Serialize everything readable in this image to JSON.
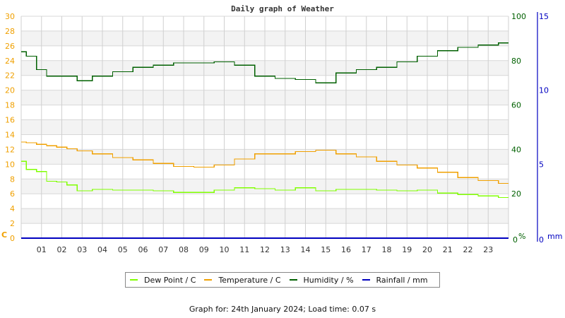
{
  "chart_data": {
    "type": "line",
    "title": "Daily graph of Weather",
    "xlabel": "",
    "x_ticks": [
      "01",
      "02",
      "03",
      "04",
      "05",
      "06",
      "07",
      "08",
      "09",
      "10",
      "11",
      "12",
      "13",
      "14",
      "15",
      "16",
      "17",
      "18",
      "19",
      "20",
      "21",
      "22",
      "23"
    ],
    "x": [
      0,
      0.5,
      1,
      1.5,
      2,
      2.5,
      3,
      4,
      5,
      6,
      7,
      8,
      9,
      10,
      11,
      12,
      13,
      14,
      15,
      16,
      17,
      18,
      19,
      20,
      21,
      22,
      23,
      24
    ],
    "axes": {
      "left": {
        "label": "C",
        "ticks": [
          0,
          2,
          4,
          6,
          8,
          10,
          12,
          14,
          16,
          18,
          20,
          22,
          24,
          26,
          28,
          30
        ],
        "range": [
          0,
          30
        ],
        "color": "#f0a000"
      },
      "right_humidity": {
        "label": "%",
        "ticks": [
          0,
          20,
          40,
          60,
          80,
          100
        ],
        "range": [
          0,
          100
        ],
        "color": "#006000"
      },
      "right_rain": {
        "label": "mm",
        "ticks": [
          0,
          5,
          10,
          15
        ],
        "range": [
          0,
          15
        ],
        "color": "#0000c0"
      }
    },
    "grid": true,
    "legend_position": "bottom",
    "series": [
      {
        "name": "Dew Point / C",
        "axis": "left",
        "color": "#80ff00",
        "values": [
          10.4,
          9.3,
          9.0,
          7.7,
          7.6,
          7.2,
          6.4,
          6.6,
          6.5,
          6.5,
          6.4,
          6.2,
          6.2,
          6.5,
          6.8,
          6.7,
          6.5,
          6.8,
          6.4,
          6.6,
          6.6,
          6.5,
          6.4,
          6.5,
          6.1,
          5.9,
          5.7,
          5.5
        ]
      },
      {
        "name": "Temperature / C",
        "axis": "left",
        "color": "#f0a000",
        "values": [
          13.0,
          12.9,
          12.7,
          12.5,
          12.3,
          12.1,
          11.8,
          11.4,
          10.9,
          10.6,
          10.1,
          9.7,
          9.6,
          9.9,
          10.7,
          11.4,
          11.4,
          11.7,
          11.9,
          11.4,
          11.0,
          10.4,
          9.9,
          9.5,
          8.9,
          8.2,
          7.8,
          7.4
        ]
      },
      {
        "name": "Humidity / %",
        "axis": "right_humidity",
        "color": "#006000",
        "values": [
          84,
          82,
          76,
          73,
          73,
          73,
          71,
          73,
          75,
          77,
          78,
          79,
          79,
          79.5,
          78,
          73,
          72,
          71.5,
          70,
          74.5,
          76,
          77,
          79.5,
          82,
          84.5,
          86,
          87,
          88
        ]
      },
      {
        "name": "Rainfall / mm",
        "axis": "right_rain",
        "color": "#0000c0",
        "values": [
          0,
          0,
          0,
          0,
          0,
          0,
          0,
          0,
          0,
          0,
          0,
          0,
          0,
          0,
          0,
          0,
          0,
          0,
          0,
          0,
          0,
          0,
          0,
          0,
          0,
          0,
          0,
          0
        ]
      }
    ]
  },
  "legend": [
    {
      "label": "Dew Point / C",
      "color": "#80ff00"
    },
    {
      "label": "Temperature / C",
      "color": "#f0a000"
    },
    {
      "label": "Humidity / %",
      "color": "#006000"
    },
    {
      "label": "Rainfall / mm",
      "color": "#0000c0"
    }
  ],
  "footer": "Graph for: 24th January 2024; Load time: 0.07 s"
}
